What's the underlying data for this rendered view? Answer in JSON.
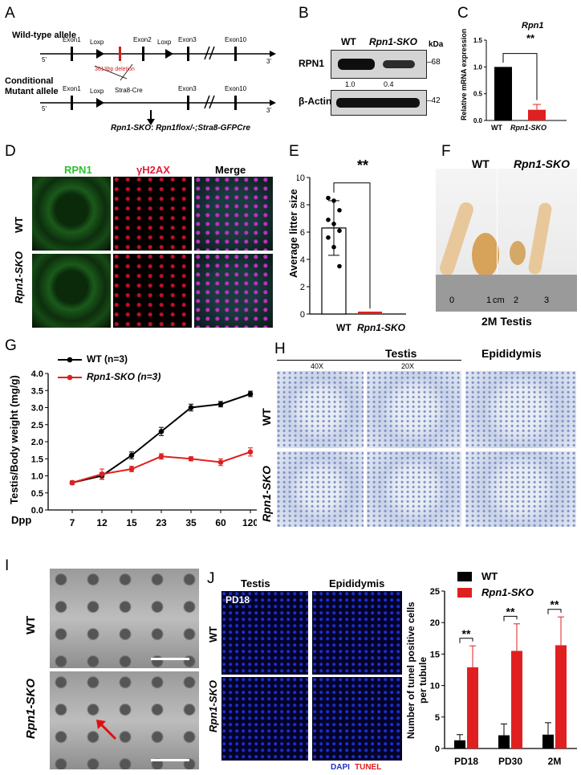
{
  "panels": {
    "A": {
      "letter": "A",
      "wt_allele": "Wild-type allele",
      "cond_allele_1": "Conditional",
      "cond_allele_2": "Mutant allele",
      "exon1": "Exon1",
      "exon2": "Exon2",
      "exon3": "Exon3",
      "exon10": "Exon10",
      "loxp": "Loxp",
      "deletion": "3613bp deletion",
      "cre": "Stra8-Cre",
      "five": "5'",
      "three": "3'",
      "sko_label": "Rpn1-SKO",
      "genotype": "Rpn1flox/-;Stra8-GFPCre"
    },
    "B": {
      "letter": "B",
      "col_wt": "WT",
      "col_sko": "Rpn1-SKO",
      "kda": "kDa",
      "rpn1": "RPN1",
      "actin": "β-Actin",
      "mw_68": "–68",
      "mw_42": "–42",
      "q_wt": "1.0",
      "q_sko": "0.4"
    },
    "C": {
      "letter": "C",
      "title": "Rpn1",
      "ylabel": "Relative mRNA expression",
      "sig": "**",
      "x_wt": "WT",
      "x_sko": "Rpn1-SKO"
    },
    "D": {
      "letter": "D",
      "col1": "RPN1",
      "col2": "γH2AX",
      "col3": "Merge",
      "row1": "WT",
      "row2": "Rpn1-SKO"
    },
    "E": {
      "letter": "E",
      "ylabel": "Average litter size",
      "sig": "**",
      "x_wt": "WT",
      "x_sko": "Rpn1-SKO"
    },
    "F": {
      "letter": "F",
      "wt": "WT",
      "sko": "Rpn1-SKO",
      "ruler0": "0",
      "ruler1": "1",
      "cm": "cm",
      "ruler2": "2",
      "ruler3": "3",
      "caption": "2M Testis"
    },
    "G": {
      "letter": "G",
      "ylabel": "Testis/Body weight (mg/g)",
      "xlabel": "Dpp",
      "legend_wt": "WT (n=3)",
      "legend_sko": "Rpn1-SKO (n=3)"
    },
    "H": {
      "letter": "H",
      "testis": "Testis",
      "epi": "Epididymis",
      "mag40": "40X",
      "mag20": "20X",
      "row1": "WT",
      "row2": "Rpn1-SKO"
    },
    "I": {
      "letter": "I",
      "row1": "WT",
      "row2": "Rpn1-SKO"
    },
    "J": {
      "letter": "J",
      "testis": "Testis",
      "epi": "Epididymis",
      "pd18": "PD18",
      "row1": "WT",
      "row2": "Rpn1-SKO",
      "dapi": "DAPI",
      "tunel": "TUNEL",
      "legend_wt": "WT",
      "legend_sko": "Rpn1-SKO",
      "ylabel1": "Number of tunel positive cells",
      "ylabel2": "per tubule",
      "sig": "**"
    }
  },
  "colors": {
    "wt": "#000000",
    "sko": "#e02020"
  },
  "chart_data": [
    {
      "type": "bar",
      "panel": "C",
      "title": "Rpn1",
      "ylabel": "Relative mRNA expression",
      "categories": [
        "WT",
        "Rpn1-SKO"
      ],
      "values": [
        1.0,
        0.2
      ],
      "errors": [
        0,
        0.1
      ],
      "ylim": [
        0,
        1.5
      ],
      "yticks": [
        "0.0",
        "0.5",
        "1.0",
        "1.5"
      ]
    },
    {
      "type": "bar",
      "panel": "E",
      "ylabel": "Average litter size",
      "categories": [
        "WT",
        "Rpn1-SKO"
      ],
      "values": [
        6.3,
        0.05
      ],
      "errors": [
        2.0,
        0
      ],
      "points": [
        8.5,
        8.3,
        7.6,
        6.9,
        6.6,
        6.1,
        5.6,
        4.9,
        3.5
      ],
      "ylim": [
        0,
        10
      ],
      "yticks": [
        "0",
        "2",
        "4",
        "6",
        "8",
        "10"
      ]
    },
    {
      "type": "line",
      "panel": "G",
      "ylabel": "Testis/Body weight (mg/g)",
      "xlabel": "Dpp",
      "x": [
        "7",
        "12",
        "15",
        "23",
        "35",
        "60",
        "120"
      ],
      "series": [
        {
          "name": "WT (n=3)",
          "values": [
            0.8,
            1.0,
            1.6,
            2.3,
            3.0,
            3.1,
            3.4
          ],
          "errors": [
            0.05,
            0.1,
            0.1,
            0.12,
            0.1,
            0.08,
            0.08
          ]
        },
        {
          "name": "Rpn1-SKO (n=3)",
          "values": [
            0.8,
            1.05,
            1.2,
            1.57,
            1.5,
            1.4,
            1.7
          ],
          "errors": [
            0.05,
            0.15,
            0.08,
            0.08,
            0.06,
            0.1,
            0.12
          ]
        }
      ],
      "ylim": [
        0,
        4.0
      ],
      "yticks": [
        "0.0",
        "0.5",
        "1.0",
        "1.5",
        "2.0",
        "2.5",
        "3.0",
        "3.5",
        "4.0"
      ]
    },
    {
      "type": "bar",
      "panel": "J",
      "ylabel": "Number of tunel positive cells per tubule",
      "categories": [
        "PD18",
        "PD30",
        "2M"
      ],
      "series": [
        {
          "name": "WT",
          "values": [
            1.3,
            2.1,
            2.2
          ],
          "errors": [
            0.9,
            1.8,
            1.9
          ]
        },
        {
          "name": "Rpn1-SKO",
          "values": [
            12.9,
            15.5,
            16.4
          ],
          "errors": [
            3.4,
            4.3,
            4.5
          ]
        }
      ],
      "ylim": [
        0,
        25
      ],
      "yticks": [
        "0",
        "5",
        "10",
        "15",
        "20",
        "25"
      ]
    }
  ]
}
